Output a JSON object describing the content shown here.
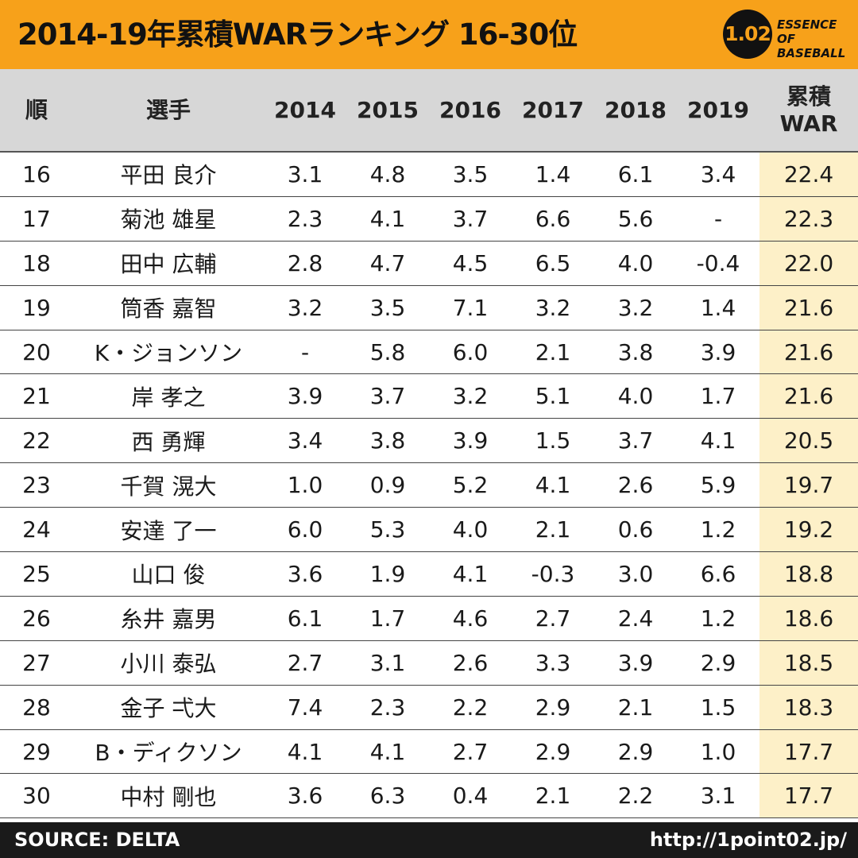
{
  "title": "2014-19年累積WARランキング 16-30位",
  "logo": {
    "mark": "1.02",
    "line1": "ESSENCE OF",
    "line2": "BASEBALL"
  },
  "chart_data": {
    "type": "table",
    "columns": [
      "順",
      "選手",
      "2014",
      "2015",
      "2016",
      "2017",
      "2018",
      "2019",
      "累積",
      "WAR"
    ],
    "rows": [
      [
        "16",
        "平田 良介",
        "3.1",
        "4.8",
        "3.5",
        "1.4",
        "6.1",
        "3.4",
        "22.4"
      ],
      [
        "17",
        "菊池 雄星",
        "2.3",
        "4.1",
        "3.7",
        "6.6",
        "5.6",
        "-",
        "22.3"
      ],
      [
        "18",
        "田中 広輔",
        "2.8",
        "4.7",
        "4.5",
        "6.5",
        "4.0",
        "-0.4",
        "22.0"
      ],
      [
        "19",
        "筒香 嘉智",
        "3.2",
        "3.5",
        "7.1",
        "3.2",
        "3.2",
        "1.4",
        "21.6"
      ],
      [
        "20",
        "K・ジョンソン",
        "-",
        "5.8",
        "6.0",
        "2.1",
        "3.8",
        "3.9",
        "21.6"
      ],
      [
        "21",
        "岸 孝之",
        "3.9",
        "3.7",
        "3.2",
        "5.1",
        "4.0",
        "1.7",
        "21.6"
      ],
      [
        "22",
        "西 勇輝",
        "3.4",
        "3.8",
        "3.9",
        "1.5",
        "3.7",
        "4.1",
        "20.5"
      ],
      [
        "23",
        "千賀 滉大",
        "1.0",
        "0.9",
        "5.2",
        "4.1",
        "2.6",
        "5.9",
        "19.7"
      ],
      [
        "24",
        "安達 了一",
        "6.0",
        "5.3",
        "4.0",
        "2.1",
        "0.6",
        "1.2",
        "19.2"
      ],
      [
        "25",
        "山口 俊",
        "3.6",
        "1.9",
        "4.1",
        "-0.3",
        "3.0",
        "6.6",
        "18.8"
      ],
      [
        "26",
        "糸井 嘉男",
        "6.1",
        "1.7",
        "4.6",
        "2.7",
        "2.4",
        "1.2",
        "18.6"
      ],
      [
        "27",
        "小川 泰弘",
        "2.7",
        "3.1",
        "2.6",
        "3.3",
        "3.9",
        "2.9",
        "18.5"
      ],
      [
        "28",
        "金子 弌大",
        "7.4",
        "2.3",
        "2.2",
        "2.9",
        "2.1",
        "1.5",
        "18.3"
      ],
      [
        "29",
        "B・ディクソン",
        "4.1",
        "4.1",
        "2.7",
        "2.9",
        "2.9",
        "1.0",
        "17.7"
      ],
      [
        "30",
        "中村 剛也",
        "3.6",
        "6.3",
        "0.4",
        "2.1",
        "2.2",
        "3.1",
        "17.7"
      ]
    ]
  },
  "footer": {
    "source": "SOURCE: DELTA",
    "url": "http://1point02.jp/"
  },
  "colors": {
    "header": "#f7a11a",
    "table_header": "#d7d7d7",
    "war_column": "#fdf0c8",
    "footer": "#1a1a1a"
  }
}
